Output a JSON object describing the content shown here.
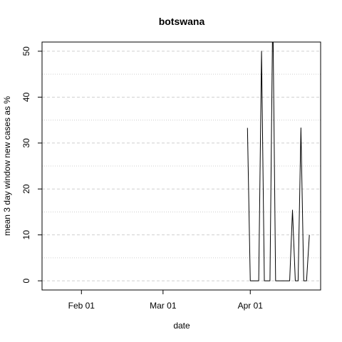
{
  "chart_data": {
    "type": "line",
    "title": "botswana",
    "xlabel": "date",
    "ylabel": "mean  3  day window new cases as %",
    "x_ticks": [
      "Feb 01",
      "Mar 01",
      "Apr 01"
    ],
    "x_tick_dates": [
      "2020-02-01",
      "2020-03-01",
      "2020-04-01"
    ],
    "y_ticks": [
      0,
      10,
      20,
      30,
      40,
      50
    ],
    "xlim": [
      "2020-01-18",
      "2020-04-26"
    ],
    "ylim": [
      -2,
      52
    ],
    "grid": true,
    "series": [
      {
        "color": "#000000",
        "points": [
          [
            "2020-03-31",
            33.3
          ],
          [
            "2020-04-01",
            0
          ],
          [
            "2020-04-02",
            0
          ],
          [
            "2020-04-03",
            0
          ],
          [
            "2020-04-04",
            0
          ],
          [
            "2020-04-05",
            50
          ],
          [
            "2020-04-06",
            0
          ],
          [
            "2020-04-07",
            0
          ],
          [
            "2020-04-08",
            0
          ],
          [
            "2020-04-09",
            60
          ],
          [
            "2020-04-10",
            0
          ],
          [
            "2020-04-11",
            0
          ],
          [
            "2020-04-12",
            0
          ],
          [
            "2020-04-13",
            0
          ],
          [
            "2020-04-14",
            0
          ],
          [
            "2020-04-15",
            0
          ],
          [
            "2020-04-16",
            15.4
          ],
          [
            "2020-04-17",
            0
          ],
          [
            "2020-04-18",
            0
          ],
          [
            "2020-04-19",
            33.3
          ],
          [
            "2020-04-20",
            0
          ],
          [
            "2020-04-21",
            0
          ],
          [
            "2020-04-22",
            10
          ]
        ]
      }
    ]
  }
}
